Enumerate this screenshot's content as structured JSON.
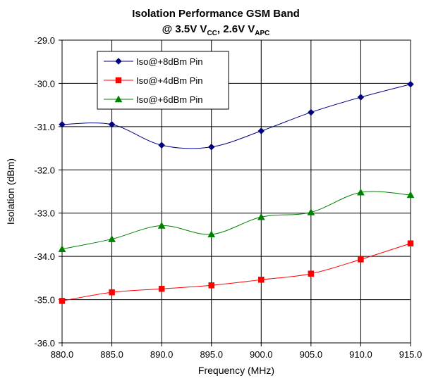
{
  "chart_data": {
    "type": "line",
    "title": "Isolation Performance GSM Band",
    "subtitle": {
      "parts": [
        {
          "text": "@ 3.5V V",
          "sub": false
        },
        {
          "text": "CC",
          "sub": true
        },
        {
          "text": ", 2.6V V",
          "sub": false
        },
        {
          "text": "APC",
          "sub": true
        }
      ]
    },
    "xlabel": "Frequency (MHz)",
    "ylabel": "Isolation (dBm)",
    "xlim": [
      880,
      915
    ],
    "ylim": [
      -36,
      -29
    ],
    "x_ticks": [
      880,
      885,
      890,
      895,
      900,
      905,
      910,
      915
    ],
    "x_tick_labels": [
      "880.0",
      "885.0",
      "890.0",
      "895.0",
      "900.0",
      "905.0",
      "910.0",
      "915.0"
    ],
    "y_ticks": [
      -29,
      -30,
      -31,
      -32,
      -33,
      -34,
      -35,
      -36
    ],
    "y_tick_labels": [
      "-29.0",
      "-30.0",
      "-31.0",
      "-32.0",
      "-33.0",
      "-34.0",
      "-35.0",
      "-36.0"
    ],
    "grid": true,
    "legend_position": "top-left",
    "x": [
      880,
      885,
      890,
      895,
      900,
      905,
      910,
      915
    ],
    "series": [
      {
        "name": "Iso@+8dBm Pin",
        "color": "#000080",
        "marker": "diamond",
        "values": [
          -30.95,
          -30.95,
          -31.43,
          -31.47,
          -31.1,
          -30.67,
          -30.32,
          -30.02
        ]
      },
      {
        "name": "Iso@+4dBm Pin",
        "color": "#ff0000",
        "marker": "square",
        "values": [
          -35.03,
          -34.83,
          -34.75,
          -34.67,
          -34.54,
          -34.4,
          -34.07,
          -33.7
        ]
      },
      {
        "name": "Iso@+6dBm Pin",
        "color": "#008000",
        "marker": "triangle",
        "values": [
          -33.83,
          -33.6,
          -33.29,
          -33.49,
          -33.09,
          -32.98,
          -32.52,
          -32.58
        ]
      }
    ]
  }
}
